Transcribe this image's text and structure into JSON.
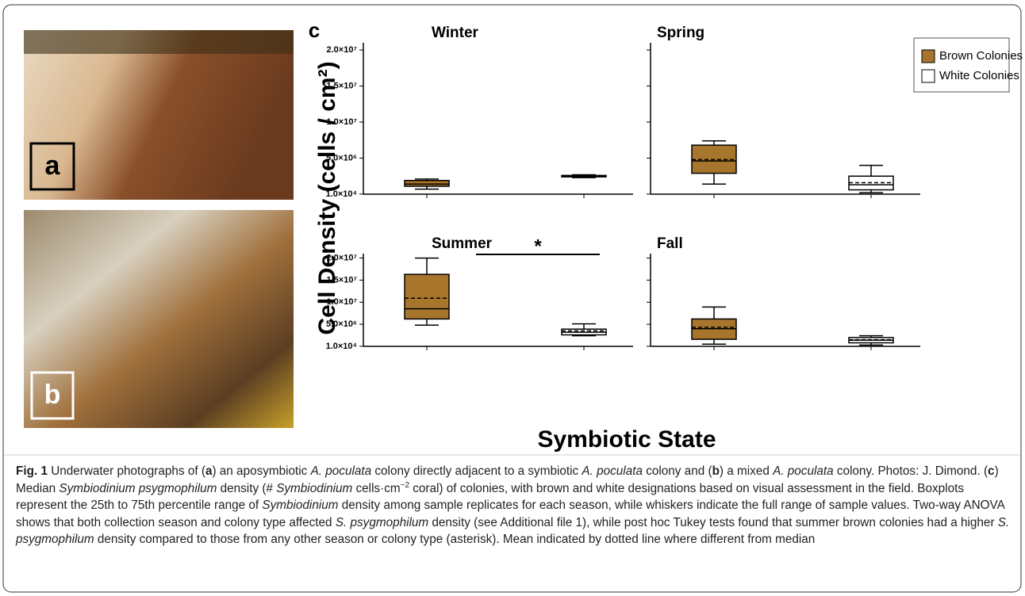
{
  "chart_data": {
    "type": "box",
    "panel_letter": "c",
    "ylabel": "Cell Density  (cells / cm²)",
    "xlabel": "Symbiotic State",
    "ylim": [
      0,
      21000000
    ],
    "yticks": [
      {
        "value": 10000,
        "label": "1.0×10⁴"
      },
      {
        "value": 5000000,
        "label": "5.0×10⁶"
      },
      {
        "value": 10000000,
        "label": "1.0×10⁷"
      },
      {
        "value": 15000000,
        "label": "1.5×10⁷"
      },
      {
        "value": 20000000,
        "label": "2.0×10⁷"
      }
    ],
    "legend": [
      {
        "name": "Brown Colonies",
        "color": "#a8752c"
      },
      {
        "name": "White Colonies",
        "color": "#ffffff"
      }
    ],
    "panels": [
      {
        "title": "Winter",
        "boxes": [
          {
            "min": 700000,
            "q1": 1100000,
            "median": 1400000,
            "q3": 1900000,
            "max": 2100000
          },
          {
            "min": 2300000,
            "q1": 2400000,
            "median": 2500000,
            "q3": 2600000,
            "max": 2700000
          }
        ]
      },
      {
        "title": "Spring",
        "boxes": [
          {
            "min": 1400000,
            "q1": 2900000,
            "median": 4600000,
            "mean": 4800000,
            "q3": 6800000,
            "max": 7400000
          },
          {
            "min": 200000,
            "q1": 600000,
            "median": 1300000,
            "mean": 1600000,
            "q3": 2500000,
            "max": 4000000
          }
        ]
      },
      {
        "title": "Summer",
        "annotation": "*",
        "boxes": [
          {
            "min": 4800000,
            "q1": 6200000,
            "median": 8500000,
            "mean": 10900000,
            "q3": 16300000,
            "max": 20000000
          },
          {
            "min": 2400000,
            "q1": 2600000,
            "median": 3200000,
            "mean": 3500000,
            "q3": 3900000,
            "max": 5100000
          }
        ]
      },
      {
        "title": "Fall",
        "boxes": [
          {
            "min": 500000,
            "q1": 1600000,
            "median": 4000000,
            "mean": 4300000,
            "q3": 6200000,
            "max": 8900000
          },
          {
            "min": 300000,
            "q1": 800000,
            "median": 1400000,
            "mean": 1500000,
            "q3": 2000000,
            "max": 2400000
          }
        ]
      }
    ]
  },
  "photos": [
    {
      "label": "a"
    },
    {
      "label": "b"
    }
  ],
  "caption": [
    {
      "text": "Fig. 1",
      "style": "b"
    },
    {
      "text": " Underwater photographs of ("
    },
    {
      "text": "a",
      "style": "b"
    },
    {
      "text": ") an aposymbiotic "
    },
    {
      "text": "A. poculata",
      "style": "i"
    },
    {
      "text": " colony directly adjacent to a symbiotic "
    },
    {
      "text": "A. poculata",
      "style": "i"
    },
    {
      "text": " colony and ("
    },
    {
      "text": "b",
      "style": "b"
    },
    {
      "text": ") a mixed "
    },
    {
      "text": "A. poculata",
      "style": "i"
    },
    {
      "text": " colony. Photos: J. Dimond. ("
    },
    {
      "text": "c",
      "style": "b"
    },
    {
      "text": ") Median "
    },
    {
      "text": "Symbiodinium psygmophilum",
      "style": "i"
    },
    {
      "text": " density (# "
    },
    {
      "text": "Symbiodinium",
      "style": "i"
    },
    {
      "text": " cells·cm"
    },
    {
      "text": "−2",
      "style": "sup"
    },
    {
      "text": " coral) of colonies, with brown and white designations based on visual assessment in the field. Boxplots represent the 25th to 75th percentile range of "
    },
    {
      "text": "Symbiodinium",
      "style": "i"
    },
    {
      "text": " density among sample replicates for each season, while whiskers indicate the full range of sample values. Two-way ANOVA shows that both collection season and colony type affected "
    },
    {
      "text": "S. psygmophilum",
      "style": "i"
    },
    {
      "text": " density (see Additional file 1), while post hoc Tukey tests found that summer brown colonies had a higher "
    },
    {
      "text": "S. psygmophilum",
      "style": "i"
    },
    {
      "text": " density compared to those from any other season or colony type (asterisk). Mean indicated by dotted line where different from median"
    }
  ]
}
